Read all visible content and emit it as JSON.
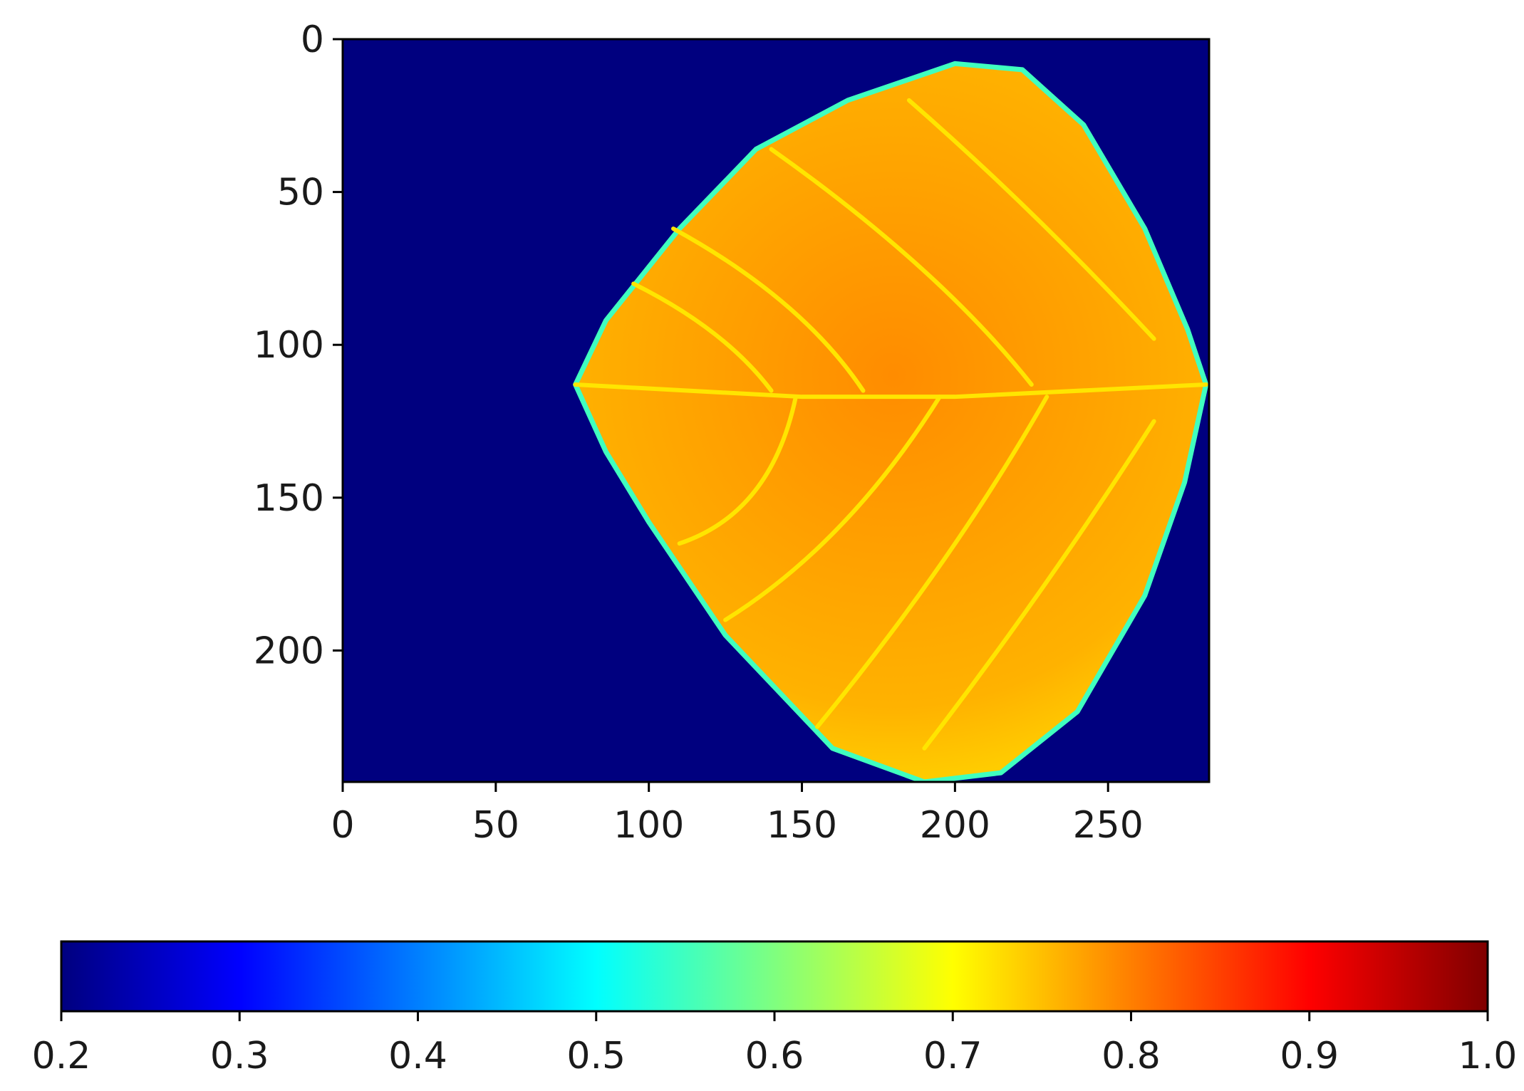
{
  "chart_data": {
    "type": "heatmap",
    "title": "",
    "xlabel": "",
    "ylabel": "",
    "image_width": 283,
    "image_height": 243,
    "xlim": [
      0,
      283
    ],
    "ylim": [
      243,
      0
    ],
    "y_axis_inverted": true,
    "x_ticks": [
      0,
      50,
      100,
      150,
      200,
      250
    ],
    "x_tick_labels": [
      "0",
      "50",
      "100",
      "150",
      "200",
      "250"
    ],
    "y_ticks": [
      0,
      50,
      100,
      150,
      200
    ],
    "y_tick_labels": [
      "0",
      "50",
      "100",
      "150",
      "200"
    ],
    "colormap": "jet",
    "background_value": 0.2,
    "leaf": {
      "outline": [
        [
          76,
          113
        ],
        [
          86,
          92
        ],
        [
          110,
          62
        ],
        [
          135,
          36
        ],
        [
          165,
          20
        ],
        [
          200,
          8
        ],
        [
          222,
          10
        ],
        [
          242,
          28
        ],
        [
          262,
          62
        ],
        [
          276,
          95
        ],
        [
          282,
          113
        ],
        [
          275,
          145
        ],
        [
          262,
          182
        ],
        [
          240,
          220
        ],
        [
          215,
          240
        ],
        [
          190,
          243
        ],
        [
          160,
          232
        ],
        [
          125,
          195
        ],
        [
          100,
          158
        ],
        [
          86,
          135
        ]
      ],
      "midrib": [
        [
          76,
          113
        ],
        [
          150,
          117
        ],
        [
          200,
          117
        ],
        [
          282,
          113
        ]
      ],
      "veins": [
        [
          [
            108,
            62
          ],
          [
            150,
            85
          ],
          [
            170,
            115
          ]
        ],
        [
          [
            95,
            80
          ],
          [
            125,
            95
          ],
          [
            140,
            115
          ]
        ],
        [
          [
            140,
            36
          ],
          [
            195,
            75
          ],
          [
            225,
            113
          ]
        ],
        [
          [
            185,
            20
          ],
          [
            225,
            55
          ],
          [
            265,
            98
          ]
        ],
        [
          [
            148,
            117
          ],
          [
            140,
            155
          ],
          [
            110,
            165
          ]
        ],
        [
          [
            195,
            117
          ],
          [
            165,
            165
          ],
          [
            125,
            190
          ]
        ],
        [
          [
            230,
            117
          ],
          [
            200,
            170
          ],
          [
            155,
            225
          ]
        ],
        [
          [
            265,
            125
          ],
          [
            230,
            180
          ],
          [
            190,
            232
          ]
        ]
      ],
      "edge_value": 0.55,
      "vein_value": 0.72,
      "blade_value_center": 0.79,
      "blade_value_outer": 0.73
    },
    "colorbar": {
      "orientation": "horizontal",
      "vmin": 0.2,
      "vmax": 1.0,
      "ticks": [
        0.2,
        0.3,
        0.4,
        0.5,
        0.6,
        0.7,
        0.8,
        0.9,
        1.0
      ],
      "tick_labels": [
        "0.2",
        "0.3",
        "0.4",
        "0.5",
        "0.6",
        "0.7",
        "0.8",
        "0.9",
        "1.0"
      ],
      "colors": [
        "#00007f",
        "#0000ff",
        "#007fff",
        "#00ffff",
        "#7fff7f",
        "#ffff00",
        "#ff7f00",
        "#ff0000",
        "#7f0000"
      ]
    }
  }
}
